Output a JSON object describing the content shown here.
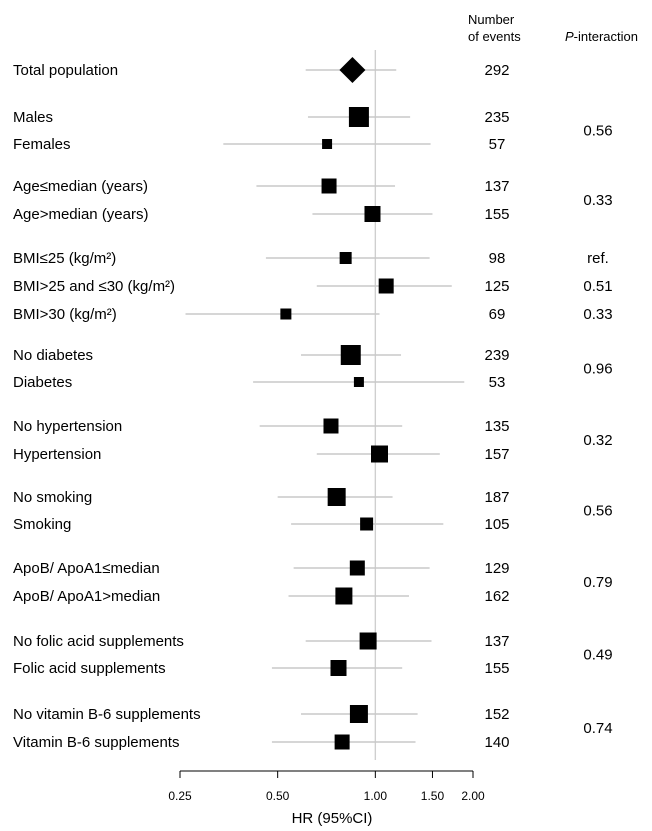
{
  "chart_data": {
    "type": "forest",
    "xlabel": "HR (95%CI)",
    "xscale": "log",
    "xlim": [
      0.25,
      2.0
    ],
    "xticks": [
      0.25,
      0.5,
      1.0,
      1.5,
      2.0
    ],
    "xtick_labels": [
      "0.25",
      "0.50",
      "1.00",
      "1.50",
      "2.00"
    ],
    "reference_value": 1.0,
    "headers": {
      "events_line1": "Number",
      "events_line2": "of events",
      "p_prefix": "P",
      "p_suffix": "-interaction"
    },
    "rows": [
      {
        "label": "Total population",
        "hr": 0.85,
        "lo": 0.61,
        "hi": 1.16,
        "events": "292",
        "marker": "diamond",
        "size": 13
      },
      {
        "label": "Males",
        "hr": 0.89,
        "lo": 0.62,
        "hi": 1.28,
        "events": "235",
        "marker": "square",
        "size": 10
      },
      {
        "label": "Females",
        "hr": 0.71,
        "lo": 0.34,
        "hi": 1.48,
        "events": "57",
        "marker": "square",
        "size": 5
      },
      {
        "label": "Age≤median (years)",
        "hr": 0.72,
        "lo": 0.43,
        "hi": 1.15,
        "events": "137",
        "marker": "square",
        "size": 7.5
      },
      {
        "label": "Age>median (years)",
        "hr": 0.98,
        "lo": 0.64,
        "hi": 1.5,
        "events": "155",
        "marker": "square",
        "size": 8
      },
      {
        "label": "BMI≤25 (kg/m²)",
        "hr": 0.81,
        "lo": 0.46,
        "hi": 1.47,
        "events": "98",
        "marker": "square",
        "size": 6
      },
      {
        "label": "BMI>25 and ≤30 (kg/m²)",
        "hr": 1.08,
        "lo": 0.66,
        "hi": 1.72,
        "events": "125",
        "marker": "square",
        "size": 7.5
      },
      {
        "label": "BMI>30 (kg/m²)",
        "hr": 0.53,
        "lo": 0.26,
        "hi": 1.03,
        "events": "69",
        "marker": "square",
        "size": 5.5
      },
      {
        "label": "No diabetes",
        "hr": 0.84,
        "lo": 0.59,
        "hi": 1.2,
        "events": "239",
        "marker": "square",
        "size": 10
      },
      {
        "label": "Diabetes",
        "hr": 0.89,
        "lo": 0.42,
        "hi": 1.88,
        "events": "53",
        "marker": "square",
        "size": 5
      },
      {
        "label": "No hypertension",
        "hr": 0.73,
        "lo": 0.44,
        "hi": 1.21,
        "events": "135",
        "marker": "square",
        "size": 7.5
      },
      {
        "label": "Hypertension",
        "hr": 1.03,
        "lo": 0.66,
        "hi": 1.58,
        "events": "157",
        "marker": "square",
        "size": 8.5
      },
      {
        "label": "No smoking",
        "hr": 0.76,
        "lo": 0.5,
        "hi": 1.13,
        "events": "187",
        "marker": "square",
        "size": 9
      },
      {
        "label": "Smoking",
        "hr": 0.94,
        "lo": 0.55,
        "hi": 1.62,
        "events": "105",
        "marker": "square",
        "size": 6.5
      },
      {
        "label": "ApoB/ ApoA1≤median",
        "hr": 0.88,
        "lo": 0.56,
        "hi": 1.47,
        "events": "129",
        "marker": "square",
        "size": 7.5
      },
      {
        "label": "ApoB/ ApoA1>median",
        "hr": 0.8,
        "lo": 0.54,
        "hi": 1.27,
        "events": "162",
        "marker": "square",
        "size": 8.5
      },
      {
        "label": "No folic acid supplements",
        "hr": 0.95,
        "lo": 0.61,
        "hi": 1.49,
        "events": "137",
        "marker": "square",
        "size": 8.5
      },
      {
        "label": "Folic acid supplements",
        "hr": 0.77,
        "lo": 0.48,
        "hi": 1.21,
        "events": "155",
        "marker": "square",
        "size": 8
      },
      {
        "label": "No vitamin B-6 supplements",
        "hr": 0.89,
        "lo": 0.59,
        "hi": 1.35,
        "events": "152",
        "marker": "square",
        "size": 9
      },
      {
        "label": "Vitamin B-6 supplements",
        "hr": 0.79,
        "lo": 0.48,
        "hi": 1.33,
        "events": "140",
        "marker": "square",
        "size": 7.5
      }
    ],
    "p_values": [
      {
        "text": "0.56",
        "rows": [
          1,
          2
        ]
      },
      {
        "text": "0.33",
        "rows": [
          3,
          4
        ]
      },
      {
        "text": "ref.",
        "rows": [
          5
        ]
      },
      {
        "text": "0.51",
        "rows": [
          6
        ]
      },
      {
        "text": "0.33",
        "rows": [
          7
        ]
      },
      {
        "text": "0.96",
        "rows": [
          8,
          9
        ]
      },
      {
        "text": "0.32",
        "rows": [
          10,
          11
        ]
      },
      {
        "text": "0.56",
        "rows": [
          12,
          13
        ]
      },
      {
        "text": "0.79",
        "rows": [
          14,
          15
        ]
      },
      {
        "text": "0.49",
        "rows": [
          16,
          17
        ]
      },
      {
        "text": "0.74",
        "rows": [
          18,
          19
        ]
      }
    ]
  }
}
